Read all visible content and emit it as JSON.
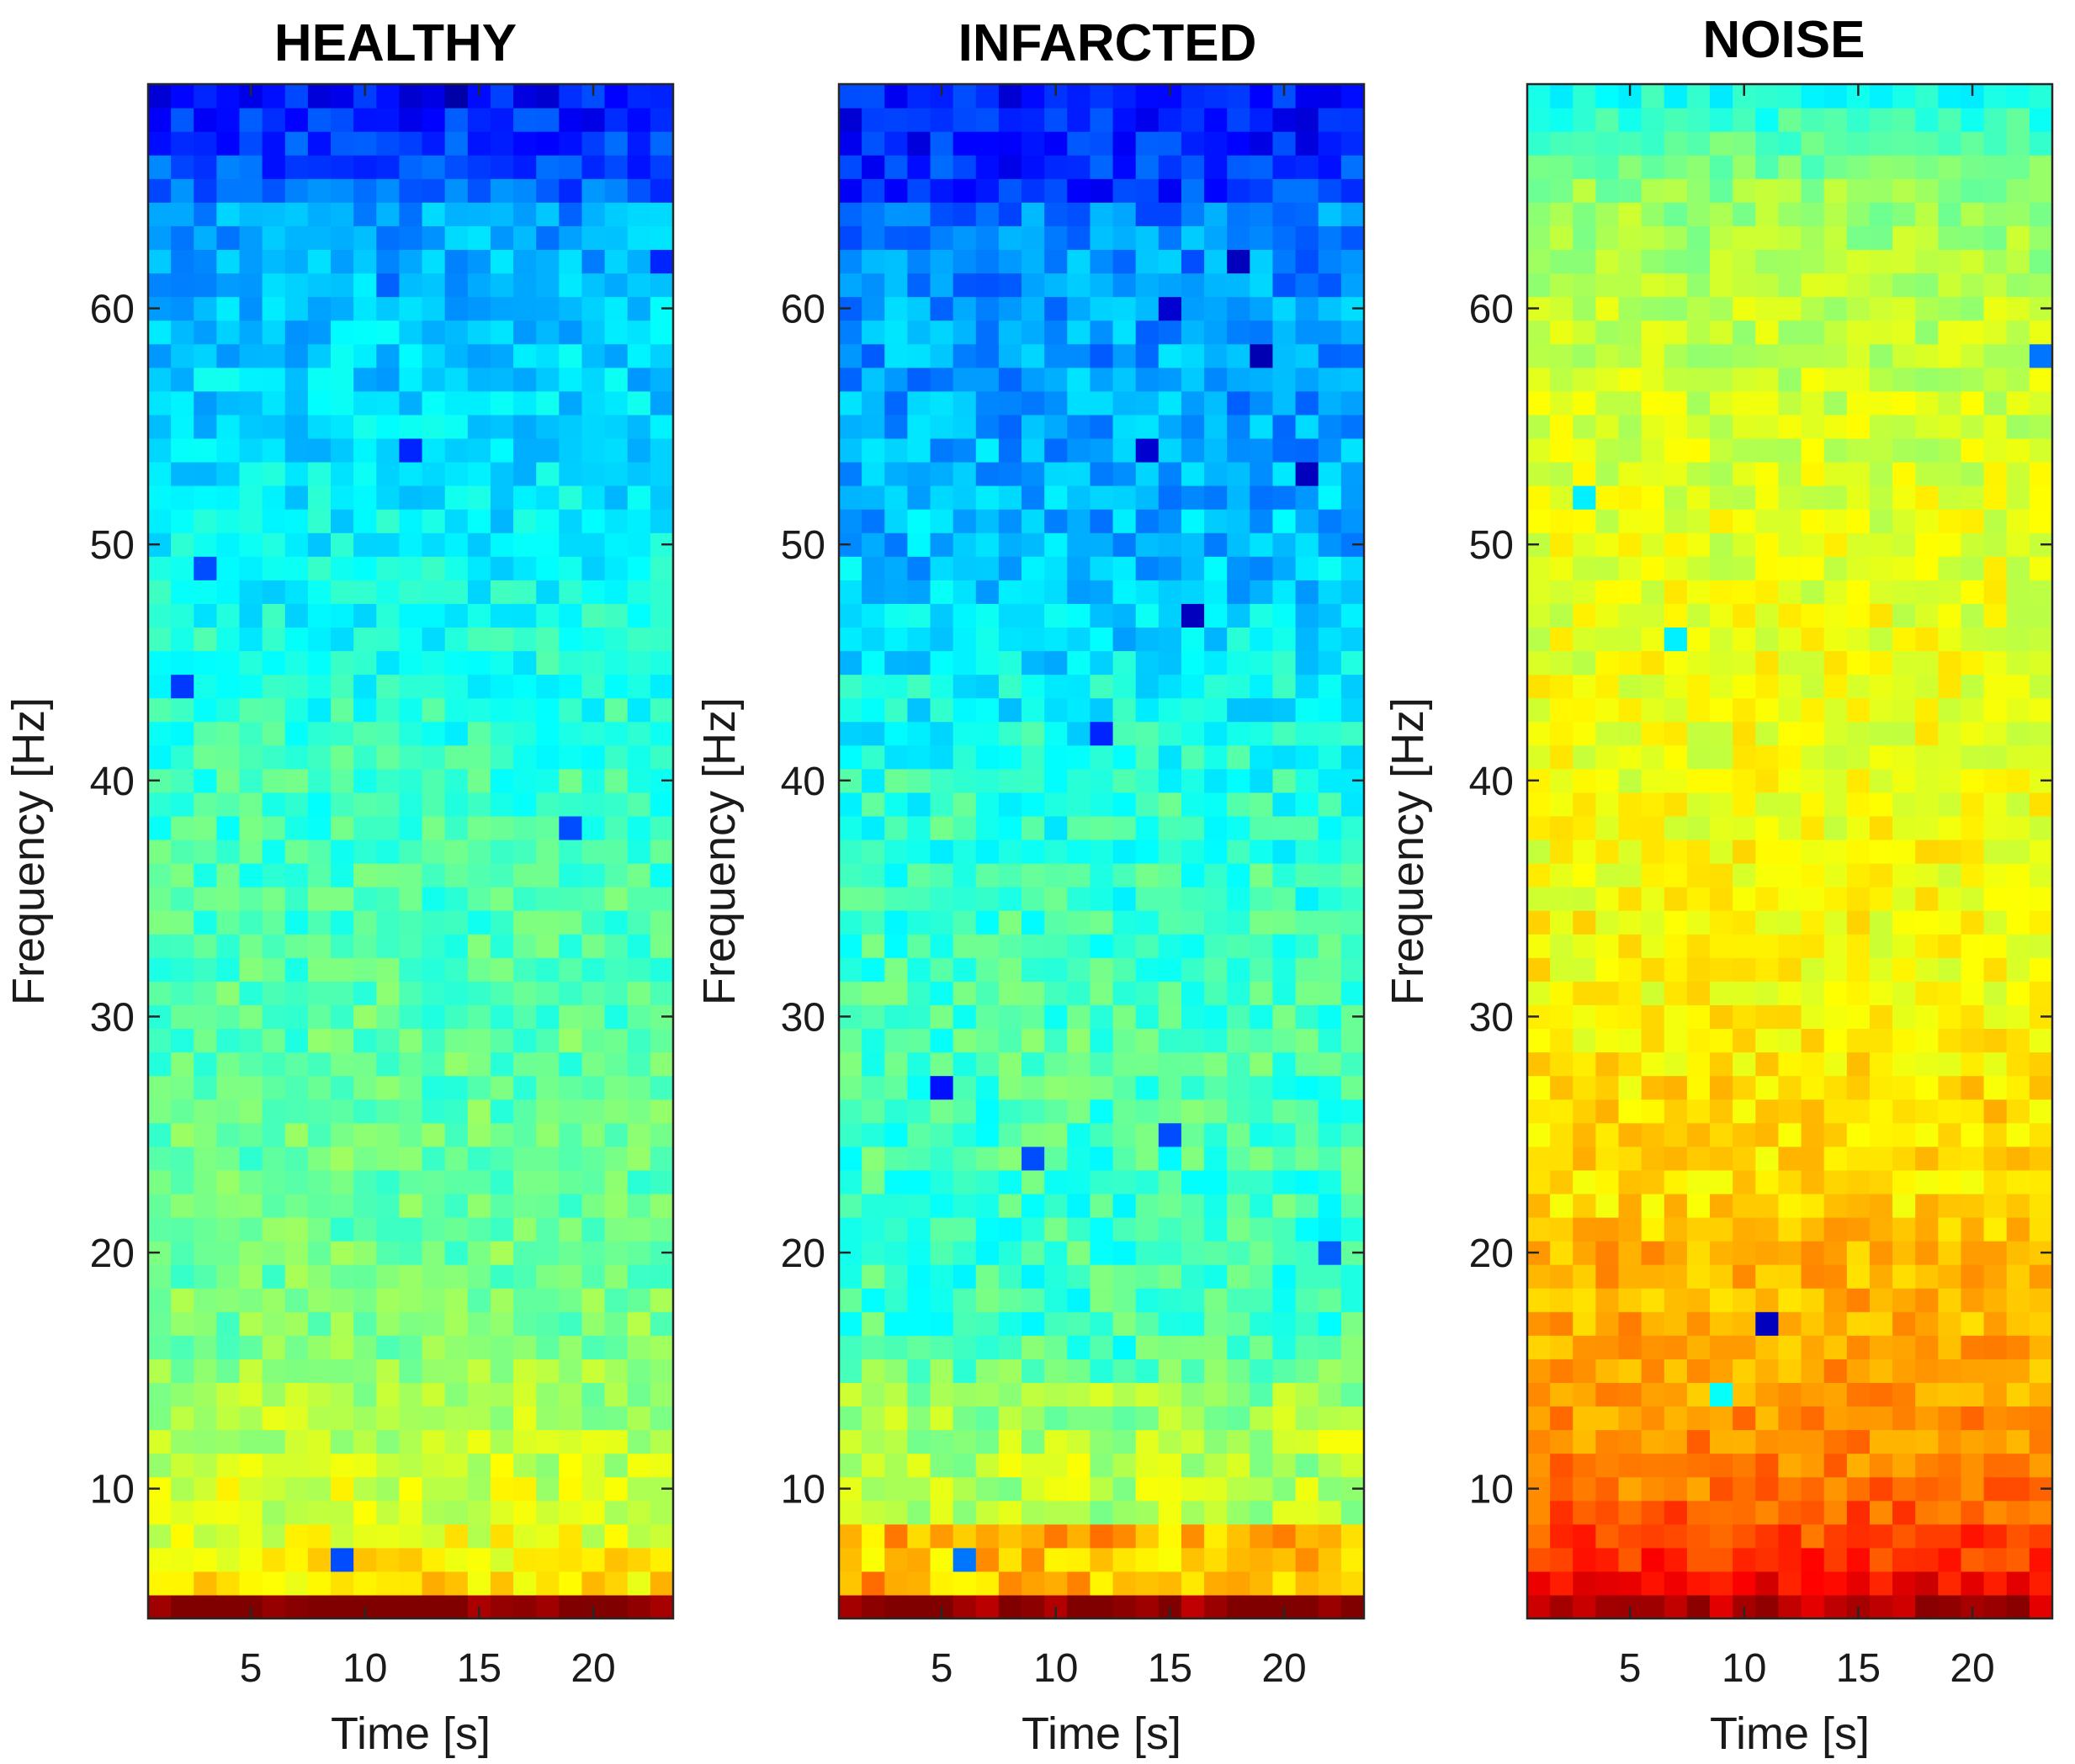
{
  "chart_data": [
    {
      "type": "heatmap",
      "title": "HEALTHY",
      "xlabel": "Time [s]",
      "ylabel": "Frequency [Hz]",
      "xlim": [
        0.5,
        23.5
      ],
      "ylim": [
        4.5,
        69.5
      ],
      "xticks": [
        5,
        10,
        15,
        20
      ],
      "yticks": [
        10,
        20,
        30,
        40,
        50,
        60
      ],
      "colormap": "jet",
      "x_bins": 23,
      "y_bins": 65,
      "profile": [
        [
          5,
          1.0
        ],
        [
          6,
          0.66
        ],
        [
          8,
          0.6
        ],
        [
          12,
          0.56
        ],
        [
          16,
          0.5
        ],
        [
          20,
          0.48
        ],
        [
          30,
          0.46
        ],
        [
          40,
          0.43
        ],
        [
          45,
          0.4
        ],
        [
          50,
          0.37
        ],
        [
          55,
          0.34
        ],
        [
          60,
          0.32
        ],
        [
          64,
          0.28
        ],
        [
          65,
          0.22
        ],
        [
          69,
          0.14
        ]
      ],
      "noise": 0.06,
      "seed": 11,
      "outliers": [
        [
          2,
          44,
          0.18
        ],
        [
          9,
          7,
          0.2
        ],
        [
          12,
          54,
          0.16
        ],
        [
          14,
          69,
          0.04
        ],
        [
          12,
          69,
          0.08
        ],
        [
          19,
          38,
          0.2
        ],
        [
          23,
          62,
          0.16
        ],
        [
          3,
          49,
          0.2
        ],
        [
          11,
          61,
          0.22
        ]
      ]
    },
    {
      "type": "heatmap",
      "title": "INFARCTED",
      "xlabel": "Time [s]",
      "ylabel": "Frequency [Hz]",
      "xlim": [
        0.5,
        23.5
      ],
      "ylim": [
        4.5,
        69.5
      ],
      "xticks": [
        5,
        10,
        15,
        20
      ],
      "yticks": [
        10,
        20,
        30,
        40,
        50,
        60
      ],
      "colormap": "jet",
      "x_bins": 23,
      "y_bins": 65,
      "profile": [
        [
          5,
          1.0
        ],
        [
          6,
          0.7
        ],
        [
          7,
          0.68
        ],
        [
          8,
          0.7
        ],
        [
          9,
          0.56
        ],
        [
          12,
          0.55
        ],
        [
          14,
          0.52
        ],
        [
          16,
          0.44
        ],
        [
          20,
          0.43
        ],
        [
          30,
          0.45
        ],
        [
          40,
          0.41
        ],
        [
          45,
          0.36
        ],
        [
          50,
          0.31
        ],
        [
          55,
          0.29
        ],
        [
          60,
          0.28
        ],
        [
          64,
          0.25
        ],
        [
          65,
          0.18
        ],
        [
          69,
          0.14
        ]
      ],
      "noise": 0.07,
      "seed": 23,
      "outliers": [
        [
          5,
          27,
          0.14
        ],
        [
          6,
          7,
          0.24
        ],
        [
          16,
          47,
          0.06
        ],
        [
          18,
          62,
          0.06
        ],
        [
          19,
          58,
          0.05
        ],
        [
          21,
          53,
          0.06
        ],
        [
          12,
          42,
          0.16
        ],
        [
          15,
          60,
          0.08
        ],
        [
          14,
          54,
          0.08
        ],
        [
          22,
          20,
          0.22
        ],
        [
          9,
          24,
          0.2
        ],
        [
          15,
          25,
          0.2
        ]
      ]
    },
    {
      "type": "heatmap",
      "title": "NOISE",
      "xlabel": "Time [s]",
      "ylabel": "Frequency [Hz]",
      "xlim": [
        0.5,
        23.5
      ],
      "ylim": [
        4.5,
        69.5
      ],
      "xticks": [
        5,
        10,
        15,
        20
      ],
      "yticks": [
        10,
        20,
        30,
        40,
        50,
        60
      ],
      "colormap": "jet",
      "x_bins": 23,
      "y_bins": 65,
      "profile": [
        [
          5,
          0.95
        ],
        [
          6,
          0.88
        ],
        [
          7,
          0.83
        ],
        [
          10,
          0.76
        ],
        [
          14,
          0.72
        ],
        [
          18,
          0.7
        ],
        [
          20,
          0.7
        ],
        [
          22,
          0.66
        ],
        [
          26,
          0.66
        ],
        [
          30,
          0.63
        ],
        [
          40,
          0.61
        ],
        [
          50,
          0.6
        ],
        [
          60,
          0.56
        ],
        [
          65,
          0.52
        ],
        [
          69,
          0.4
        ]
      ],
      "noise": 0.05,
      "seed": 37,
      "outliers": [
        [
          11,
          17,
          0.06
        ],
        [
          9,
          14,
          0.38
        ],
        [
          23,
          58,
          0.24
        ],
        [
          3,
          52,
          0.36
        ],
        [
          7,
          46,
          0.36
        ]
      ]
    }
  ]
}
